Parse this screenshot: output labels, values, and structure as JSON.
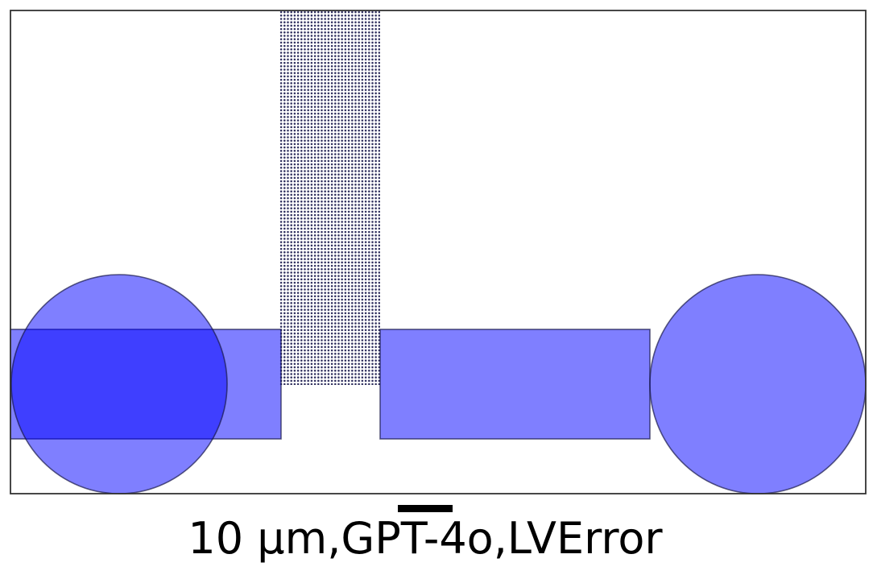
{
  "caption": "10 µm,GPT-4o,LVError",
  "colors": {
    "shape_fill": "#0000ff",
    "shape_stroke": "#1a1a4a",
    "grid_dot": "#2a2a5a",
    "frame": "#333333",
    "scale_bar": "#000000"
  }
}
